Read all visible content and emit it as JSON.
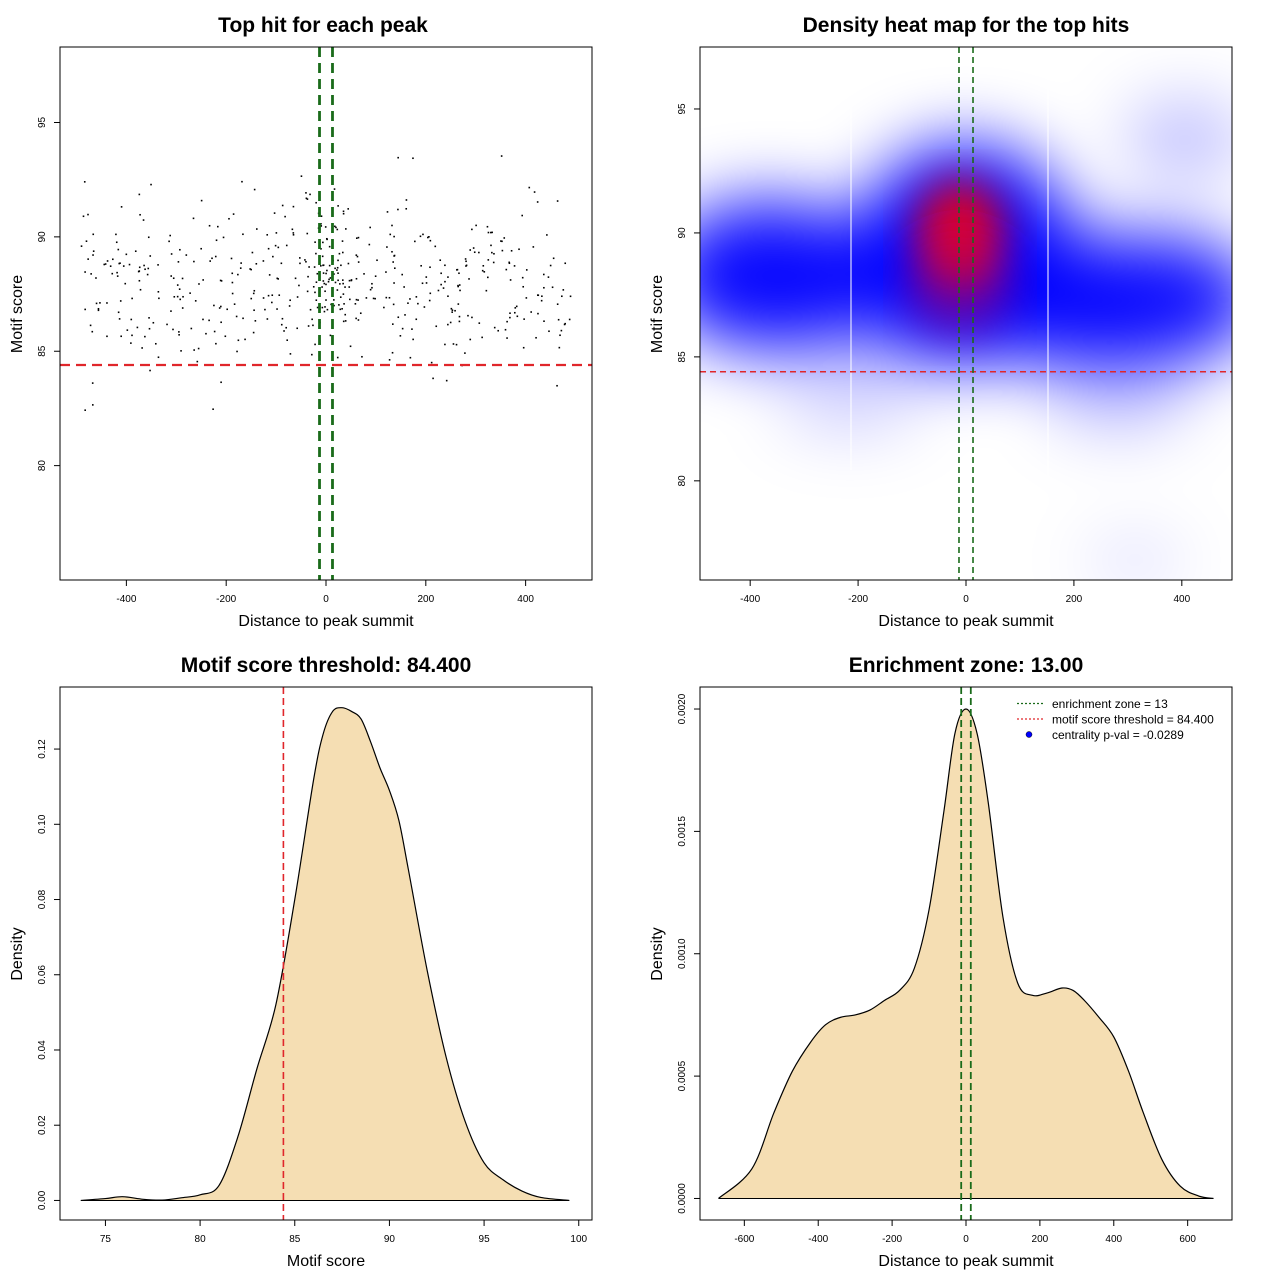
{
  "colors": {
    "threshold_line": "#e0262b",
    "zone_line": "#1a6b1a",
    "density_fill": "#f5deb3",
    "heat_low": "#0000ff",
    "heat_high": "#ff0000",
    "legend_dot": "#0000ff"
  },
  "chart_data": [
    {
      "type": "scatter",
      "title": "Top hit for each peak",
      "xlabel": "Distance to peak summit",
      "ylabel": "Motif score",
      "xlim": [
        -533,
        533
      ],
      "ylim": [
        75.0,
        98.3
      ],
      "xticks": [
        -400,
        -200,
        0,
        200,
        400
      ],
      "yticks": [
        80,
        85,
        90,
        95
      ],
      "threshold_y": 84.4,
      "zone_x": [
        -13,
        13
      ],
      "n_points": 520,
      "points_note": "top motif hit per peak; distance vs score, roughly uniform in x, scores centered near 88"
    },
    {
      "type": "heatmap",
      "title": "Density heat map for the top hits",
      "xlabel": "Distance to peak summit",
      "ylabel": "Motif score",
      "xlim": [
        -493,
        493
      ],
      "ylim": [
        76.0,
        97.5
      ],
      "xticks": [
        -400,
        -200,
        0,
        200,
        400
      ],
      "yticks": [
        80,
        85,
        90,
        95
      ],
      "threshold_y": 84.4,
      "zone_x": [
        -13,
        13
      ],
      "density_peak": {
        "x": 5,
        "y": 90.5
      },
      "secondary_modes": [
        {
          "x": -380,
          "y": 88.2
        },
        {
          "x": 310,
          "y": 87.2
        }
      ]
    },
    {
      "type": "area",
      "title": "Motif score threshold: 84.400",
      "xlabel": "Motif score",
      "ylabel": "Density",
      "xlim": [
        72.6,
        100.7
      ],
      "ylim": [
        -0.0052,
        0.1365
      ],
      "xticks": [
        75,
        80,
        85,
        90,
        95,
        100
      ],
      "yticks": [
        0.0,
        0.02,
        0.04,
        0.06,
        0.08,
        0.1,
        0.12
      ],
      "ytick_labels": [
        "0.00",
        "0.02",
        "0.04",
        "0.06",
        "0.08",
        "0.10",
        "0.12"
      ],
      "threshold_x": 84.4,
      "x": [
        73.7,
        75.0,
        75.9,
        77.0,
        78.0,
        79.0,
        80.0,
        81.0,
        82.0,
        83.0,
        84.0,
        85.0,
        86.0,
        86.5,
        87.0,
        87.5,
        88.0,
        88.5,
        89.0,
        89.5,
        90.0,
        90.5,
        91.0,
        92.0,
        93.0,
        94.0,
        95.0,
        96.0,
        97.0,
        98.0,
        99.5
      ],
      "y": [
        0.0,
        0.0005,
        0.001,
        0.0003,
        0.0001,
        0.0007,
        0.0015,
        0.004,
        0.017,
        0.035,
        0.052,
        0.08,
        0.112,
        0.124,
        0.13,
        0.131,
        0.13,
        0.128,
        0.122,
        0.115,
        0.109,
        0.101,
        0.088,
        0.061,
        0.038,
        0.021,
        0.01,
        0.0055,
        0.0025,
        0.0008,
        0.0
      ]
    },
    {
      "type": "area",
      "title": "Enrichment zone: 13.00",
      "xlabel": "Distance to peak summit",
      "ylabel": "Density",
      "xlim": [
        -720,
        720
      ],
      "ylim": [
        -8.8e-05,
        0.00209
      ],
      "xticks": [
        -600,
        -400,
        -200,
        0,
        200,
        400,
        600
      ],
      "yticks": [
        0.0,
        0.0005,
        0.001,
        0.0015,
        0.002
      ],
      "ytick_labels": [
        "0.0000",
        "0.0005",
        "0.0010",
        "0.0015",
        "0.0020"
      ],
      "zone_x": [
        -13,
        13
      ],
      "x": [
        -670,
        -580,
        -520,
        -470,
        -420,
        -380,
        -340,
        -300,
        -260,
        -220,
        -180,
        -140,
        -100,
        -60,
        -30,
        0,
        30,
        60,
        100,
        140,
        180,
        220,
        260,
        290,
        320,
        360,
        400,
        440,
        480,
        530,
        580,
        630,
        670
      ],
      "y": [
        0.0,
        0.00012,
        0.00035,
        0.00052,
        0.00064,
        0.00071,
        0.00074,
        0.00075,
        0.00077,
        0.00081,
        0.00085,
        0.00094,
        0.00118,
        0.00158,
        0.0019,
        0.002,
        0.0019,
        0.00162,
        0.00115,
        0.00088,
        0.00083,
        0.00084,
        0.00086,
        0.00085,
        0.00081,
        0.00074,
        0.00066,
        0.00052,
        0.00035,
        0.00016,
        5e-05,
        1e-05,
        0.0
      ]
    }
  ],
  "legend": {
    "enrichment": "enrichment zone = 13",
    "threshold": "motif score threshold = 84.400",
    "centrality": "centrality p-val = -0.0289"
  }
}
